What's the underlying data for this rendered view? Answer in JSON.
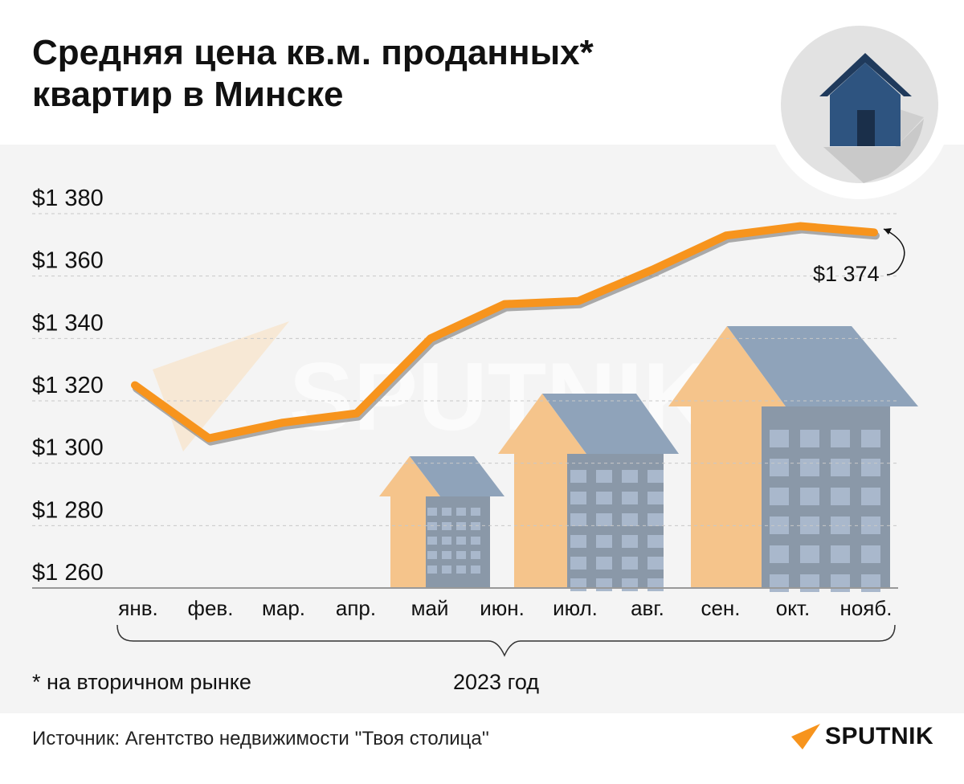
{
  "title": "Средняя цена кв.м. проданных* квартир в Минске",
  "footnote": "* на вторичном рынке",
  "source": "Источник: Агентство недвижимости ''Твоя столица''",
  "brand": "SPUTNIK",
  "watermark": "SPUTNIK",
  "colors": {
    "line": "#f7941d",
    "background": "#f4f4f4",
    "house": "#2e5480",
    "grid": "#c8c8c8"
  },
  "chart_data": {
    "type": "line",
    "title": "Средняя цена кв.м. проданных* квартир в Минске",
    "xlabel": "2023 год",
    "ylabel": "",
    "categories": [
      "янв.",
      "фев.",
      "мар.",
      "апр.",
      "май",
      "июн.",
      "июл.",
      "авг.",
      "сен.",
      "окт.",
      "нояб."
    ],
    "series": [
      {
        "name": "Средняя цена кв.м., $",
        "values": [
          1325,
          1308,
          1313,
          1316,
          1340,
          1351,
          1352,
          1362,
          1373,
          1376,
          1374
        ]
      }
    ],
    "ylim": [
      1260,
      1380
    ],
    "yticks": [
      1260,
      1280,
      1300,
      1320,
      1340,
      1360,
      1380
    ],
    "ytick_labels": [
      "$1 260",
      "$1 280",
      "$1 300",
      "$1 320",
      "$1 340",
      "$1 360",
      "$1 380"
    ],
    "grid": true,
    "annotation": "$1 374"
  }
}
